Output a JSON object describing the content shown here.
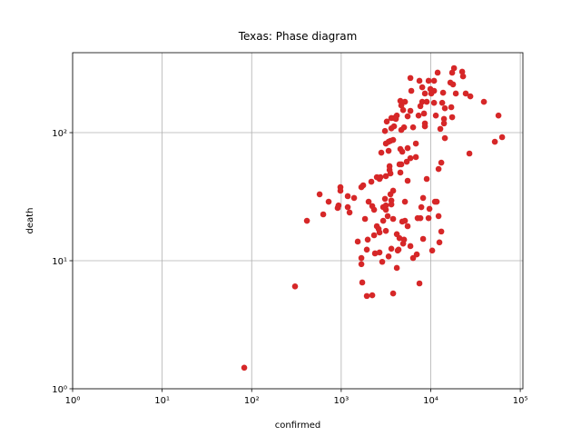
{
  "chart_data": {
    "type": "scatter",
    "title": "Texas: Phase diagram",
    "x_label": "confirmed",
    "y_label": "death",
    "xscale": "log",
    "yscale": "log",
    "grid": true,
    "color": "#d62728",
    "xlim": [
      1,
      107000
    ],
    "ylim": [
      1,
      421
    ],
    "xticks": [
      {
        "value": 1,
        "label": "10⁰"
      },
      {
        "value": 10,
        "label": "10¹"
      },
      {
        "value": 100,
        "label": "10²"
      },
      {
        "value": 1000,
        "label": "10³"
      },
      {
        "value": 10000,
        "label": "10⁴"
      },
      {
        "value": 100000,
        "label": "10⁵"
      }
    ],
    "yticks": [
      {
        "value": 1,
        "label": "10⁰"
      },
      {
        "value": 10,
        "label": "10¹"
      },
      {
        "value": 100,
        "label": "10²"
      }
    ],
    "x": [
      82.6,
      305,
      414,
      574,
      630,
      724,
      980,
      980,
      933,
      913,
      1183,
      1183,
      1240,
      1393,
      1530,
      1680,
      1680,
      1718,
      1932,
      2222,
      1932,
      1977,
      1760,
      1680,
      1845,
      2024,
      2222,
      2329,
      2171,
      2500,
      2680,
      2329,
      2500,
      2618,
      2680,
      2384,
      2680,
      2871,
      2944,
      2944,
      3083,
      3155,
      3155,
      3304,
      3383,
      3155,
      3548,
      3631,
      3802,
      3631,
      3802,
      3802,
      4178,
      4276,
      4370,
      4178,
      4477,
      4808,
      5152,
      5152,
      5035,
      4920,
      5520,
      5520,
      4690,
      4580,
      3467,
      3467,
      3548,
      3155,
      2744,
      2806,
      3383,
      3383,
      3155,
      3548,
      3083,
      3802,
      3631,
      3228,
      3631,
      3890,
      4178,
      4083,
      3890,
      4690,
      4580,
      4808,
      4477,
      5395,
      5928,
      6823,
      5520,
      6823,
      6353,
      5035,
      4920,
      4690,
      4580,
      5152,
      5928,
      5520,
      7311,
      8035,
      7663,
      7482,
      6067,
      5928,
      8035,
      8610,
      8414,
      8610,
      8610,
      9016,
      9460,
      9910,
      10890,
      11940,
      10890,
      10140,
      10890,
      11400,
      13740,
      13430,
      14390,
      16560,
      17750,
      17350,
      18200,
      19060,
      16960,
      17350,
      12800,
      14060,
      14060,
      14390,
      22440,
      22960,
      24600,
      27670,
      39260,
      27040,
      52000,
      57100,
      62700,
      13120,
      12230,
      9016,
      8220,
      9680,
      11140,
      11660,
      7850,
      7140,
      7663,
      9460,
      12230,
      13120,
      12500,
      10380,
      8220,
      6980,
      6353,
      7482,
      5928,
      3631
    ],
    "values": [
      1.46,
      6.3,
      20.5,
      33,
      23,
      28.9,
      37.5,
      35.2,
      27,
      25.8,
      31.9,
      26.2,
      23.8,
      30.9,
      14.1,
      10.5,
      9.4,
      6.76,
      5.3,
      5.37,
      12.2,
      14.6,
      38.8,
      37.5,
      21.2,
      28.9,
      26.7,
      25,
      41.4,
      44.9,
      43.5,
      15.8,
      18.6,
      17.7,
      16.6,
      11.4,
      11.6,
      9.8,
      20.5,
      26.2,
      30.4,
      27,
      25,
      22.3,
      10.8,
      17.1,
      33,
      29.5,
      35.2,
      27.5,
      21.2,
      5.55,
      8.78,
      12,
      12.2,
      16.1,
      15,
      20.2,
      20.5,
      28.9,
      14.6,
      13.6,
      18.6,
      42.1,
      56.5,
      48.8,
      51.2,
      54.7,
      48,
      45.7,
      44.9,
      69.8,
      72.1,
      84.9,
      82.2,
      86.3,
      103,
      87.7,
      108,
      122,
      130,
      130,
      136,
      128,
      112,
      105,
      74.5,
      71,
      56.5,
      59.3,
      63.2,
      64.4,
      75.7,
      82.2,
      110,
      110,
      150,
      163,
      177,
      174,
      148,
      134,
      136,
      174,
      161,
      254,
      212,
      267,
      226,
      202,
      141,
      118,
      112,
      174,
      254,
      219,
      254,
      294,
      212,
      202,
      171,
      136,
      205,
      171,
      155,
      246,
      238,
      294,
      319,
      202,
      158,
      132,
      107,
      128,
      118,
      90.6,
      299,
      275,
      202,
      192,
      174,
      68.7,
      84.9,
      136,
      92.2,
      58.3,
      52,
      43.5,
      30.9,
      25.4,
      28.9,
      28.9,
      26.2,
      21.5,
      21.5,
      21.5,
      22.3,
      16.9,
      13.9,
      12,
      14.8,
      11.2,
      10.5,
      6.65,
      13,
      12.4
    ]
  }
}
